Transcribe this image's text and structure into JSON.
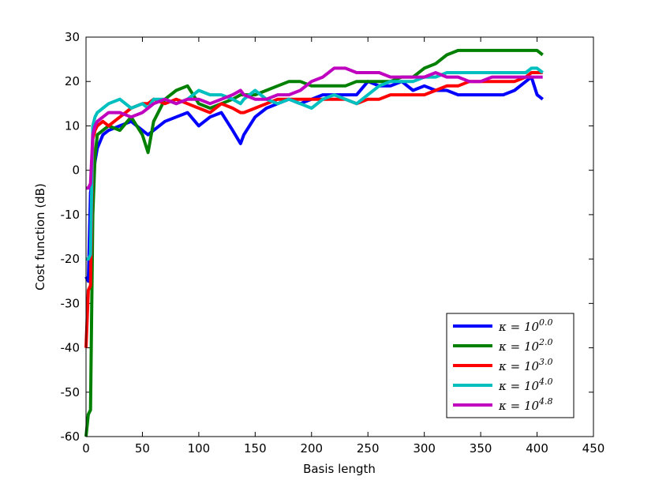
{
  "chart_data": {
    "type": "line",
    "xlabel": "Basis length",
    "ylabel": "Cost function (dB)",
    "xlim": [
      0,
      450
    ],
    "ylim": [
      -60,
      30
    ],
    "xticks": [
      0,
      50,
      100,
      150,
      200,
      250,
      300,
      350,
      400,
      450
    ],
    "yticks": [
      -60,
      -50,
      -40,
      -30,
      -20,
      -10,
      0,
      10,
      20,
      30
    ],
    "legend": "lower right",
    "x": [
      0,
      2,
      4,
      6,
      8,
      10,
      15,
      20,
      30,
      40,
      50,
      55,
      60,
      70,
      80,
      90,
      100,
      110,
      120,
      130,
      137,
      140,
      150,
      160,
      170,
      180,
      190,
      200,
      210,
      220,
      230,
      240,
      250,
      260,
      270,
      280,
      290,
      300,
      310,
      320,
      330,
      340,
      350,
      360,
      370,
      380,
      390,
      395,
      400,
      405
    ],
    "series": [
      {
        "name": "κ = 10^0.0",
        "color": "#0000ff",
        "values": [
          -24,
          -25,
          -5,
          -2,
          2,
          5,
          8,
          9,
          10,
          11,
          9,
          8,
          9,
          11,
          12,
          13,
          10,
          12,
          13,
          9,
          6,
          8,
          12,
          14,
          15,
          16,
          15,
          16,
          17,
          17,
          17,
          17,
          20,
          19,
          19,
          20,
          18,
          19,
          18,
          18,
          17,
          17,
          17,
          17,
          17,
          18,
          20,
          21,
          17,
          16
        ]
      },
      {
        "name": "κ = 10^2.0",
        "color": "#008000",
        "values": [
          -60,
          -55,
          -54,
          -10,
          3,
          8,
          9,
          10,
          9,
          12,
          8,
          4,
          11,
          16,
          18,
          19,
          15,
          14,
          15,
          16,
          17,
          17,
          17,
          18,
          19,
          20,
          20,
          19,
          19,
          19,
          19,
          20,
          20,
          20,
          20,
          21,
          21,
          23,
          24,
          26,
          27,
          27,
          27,
          27,
          27,
          27,
          27,
          27,
          27,
          26
        ]
      },
      {
        "name": "κ = 10^3.0",
        "color": "#ff0000",
        "values": [
          -40,
          -27,
          -26,
          7,
          9,
          10,
          11,
          10,
          12,
          14,
          15,
          15,
          16,
          15,
          16,
          15,
          14,
          13,
          15,
          14,
          13,
          13,
          14,
          15,
          16,
          16,
          16,
          16,
          16,
          16,
          16,
          15,
          16,
          16,
          17,
          17,
          17,
          17,
          18,
          19,
          19,
          20,
          20,
          20,
          20,
          20,
          21,
          22,
          22,
          22
        ]
      },
      {
        "name": "κ = 10^4.0",
        "color": "#00bfbf",
        "values": [
          -20,
          -20,
          -19,
          10,
          12,
          13,
          14,
          15,
          16,
          14,
          15,
          14,
          16,
          16,
          15,
          16,
          18,
          17,
          17,
          16,
          15,
          16,
          18,
          16,
          15,
          16,
          15,
          14,
          16,
          17,
          16,
          15,
          17,
          19,
          20,
          20,
          20,
          21,
          21,
          22,
          22,
          22,
          22,
          22,
          22,
          22,
          22,
          23,
          23,
          22
        ]
      },
      {
        "name": "κ = 10^4.8",
        "color": "#bf00bf",
        "values": [
          -4,
          -4,
          -3,
          8,
          10,
          11,
          12,
          13,
          13,
          12,
          13,
          14,
          15,
          16,
          15,
          16,
          16,
          15,
          16,
          17,
          18,
          17,
          16,
          16,
          17,
          17,
          18,
          20,
          21,
          23,
          23,
          22,
          22,
          22,
          21,
          21,
          21,
          21,
          22,
          21,
          21,
          20,
          20,
          21,
          21,
          21,
          21,
          21,
          21,
          21
        ]
      }
    ]
  }
}
